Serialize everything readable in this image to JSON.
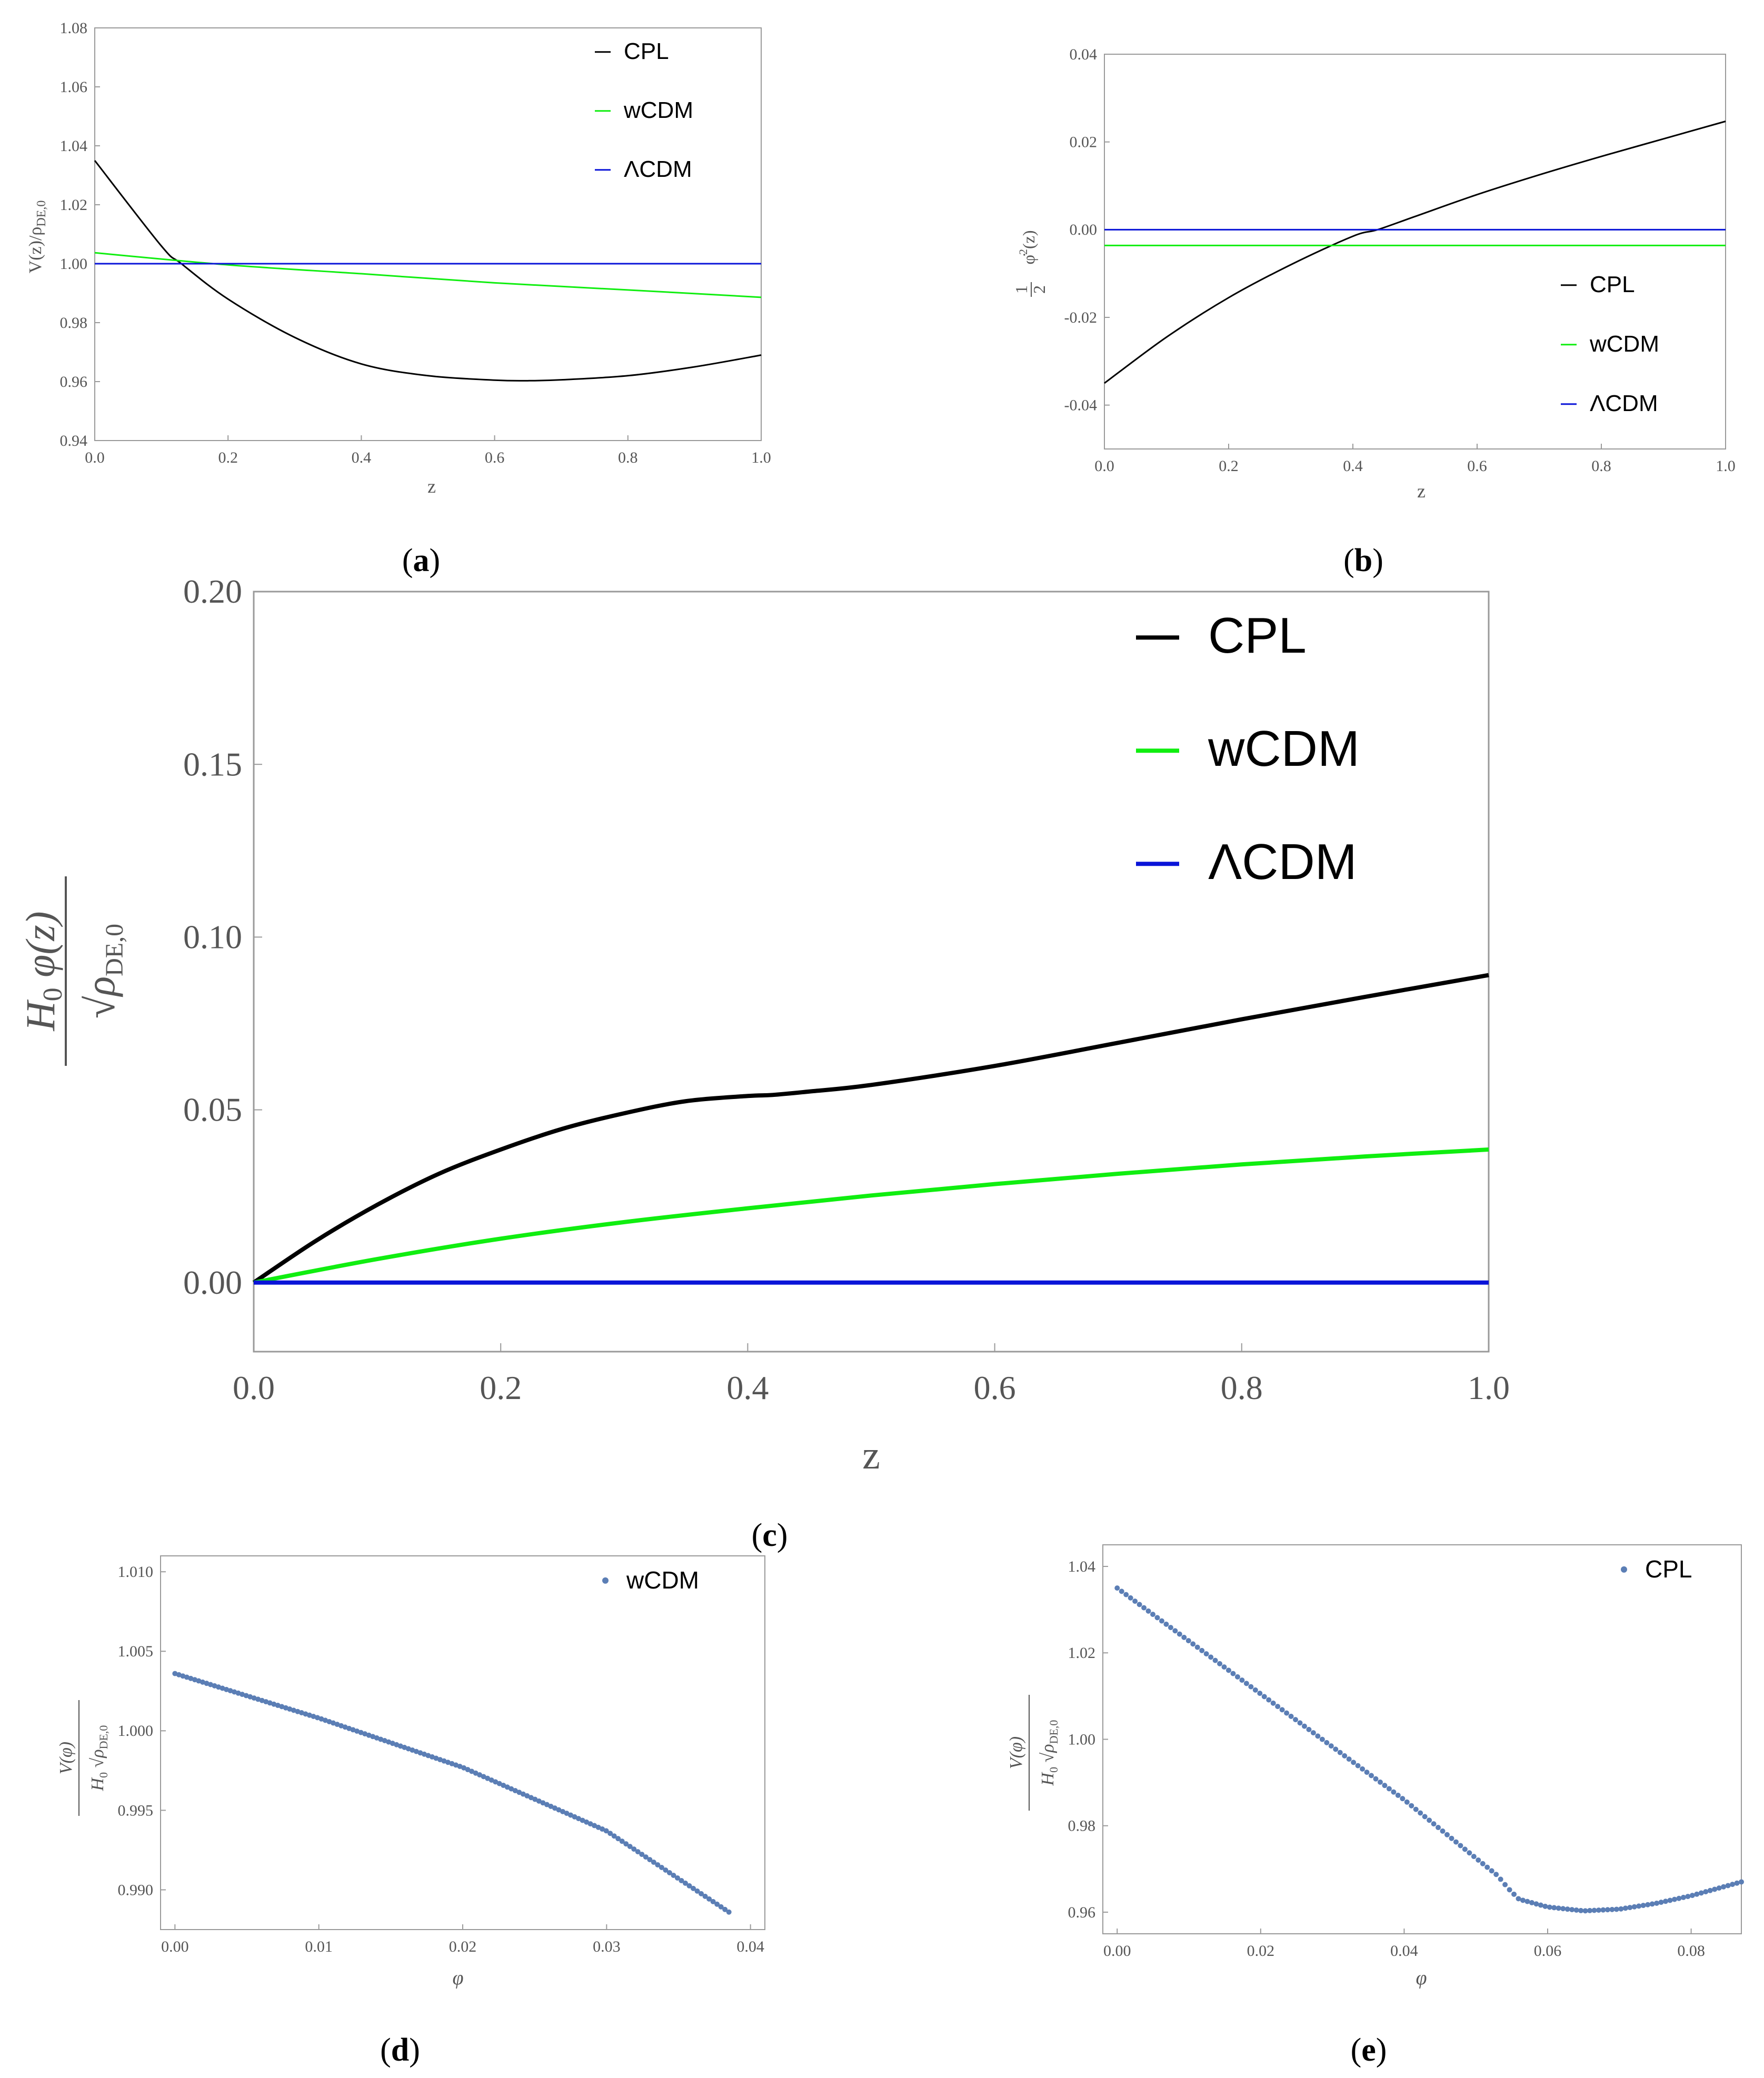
{
  "colors": {
    "cpl": "#000000",
    "wcdm": "#10ee10",
    "lcdm": "#0a14d8",
    "dots": "#5b7eb5"
  },
  "chart_data": [
    {
      "id": "a",
      "type": "line",
      "panel_label": "a",
      "xlabel": "z",
      "ylabel": "V(z)/ρ_DE,0",
      "xlim": [
        0,
        1
      ],
      "ylim": [
        0.94,
        1.08
      ],
      "xticks": [
        "0.0",
        "0.2",
        "0.4",
        "0.6",
        "0.8",
        "1.0"
      ],
      "yticks": [
        "0.94",
        "0.96",
        "0.98",
        "1.00",
        "1.02",
        "1.04",
        "1.06",
        "1.08"
      ],
      "legend": [
        "CPL",
        "wCDM",
        "ΛCDM"
      ],
      "series": [
        {
          "name": "CPL",
          "x": [
            0,
            0.1,
            0.13,
            0.2,
            0.3,
            0.4,
            0.5,
            0.6,
            0.65,
            0.7,
            0.8,
            0.9,
            1.0
          ],
          "y": [
            1.035,
            1.006,
            1.0,
            0.988,
            0.975,
            0.966,
            0.962,
            0.9605,
            0.9603,
            0.9606,
            0.962,
            0.965,
            0.969
          ]
        },
        {
          "name": "wCDM",
          "x": [
            0,
            0.2,
            0.4,
            0.6,
            0.8,
            1.0
          ],
          "y": [
            1.0037,
            0.9996,
            0.9966,
            0.9935,
            0.9911,
            0.9886
          ]
        },
        {
          "name": "ΛCDM",
          "x": [
            0,
            1
          ],
          "y": [
            1.0,
            1.0
          ]
        }
      ]
    },
    {
      "id": "b",
      "type": "line",
      "panel_label": "b",
      "xlabel": "z",
      "ylabel": "½ φ̇²(z)",
      "xlim": [
        0,
        1
      ],
      "ylim": [
        -0.05,
        0.04
      ],
      "xticks": [
        "0.0",
        "0.2",
        "0.4",
        "0.6",
        "0.8",
        "1.0"
      ],
      "yticks": [
        "-0.04",
        "-0.02",
        "0.00",
        "0.02",
        "0.04"
      ],
      "legend": [
        "CPL",
        "wCDM",
        "ΛCDM"
      ],
      "series": [
        {
          "name": "CPL",
          "x": [
            0,
            0.1,
            0.2,
            0.3,
            0.4,
            0.44,
            0.5,
            0.6,
            0.7,
            0.8,
            0.9,
            1.0
          ],
          "y": [
            -0.035,
            -0.0245,
            -0.0155,
            -0.008,
            -0.0015,
            0.0,
            0.003,
            0.008,
            0.0125,
            0.0167,
            0.0207,
            0.0247
          ]
        },
        {
          "name": "wCDM",
          "x": [
            0,
            1
          ],
          "y": [
            -0.0036,
            -0.0036
          ]
        },
        {
          "name": "ΛCDM",
          "x": [
            0,
            1
          ],
          "y": [
            0.0,
            0.0
          ]
        }
      ]
    },
    {
      "id": "c",
      "type": "line",
      "panel_label": "c",
      "xlabel": "z",
      "ylabel": "H₀ φ(z) / √ρ_DE,0",
      "xlim": [
        0,
        1
      ],
      "ylim": [
        -0.02,
        0.2
      ],
      "xticks": [
        "0.0",
        "0.2",
        "0.4",
        "0.6",
        "0.8",
        "1.0"
      ],
      "yticks": [
        "0.00",
        "0.05",
        "0.10",
        "0.15",
        "0.20"
      ],
      "legend": [
        "CPL",
        "wCDM",
        "ΛCDM"
      ],
      "series": [
        {
          "name": "CPL",
          "x": [
            0,
            0.05,
            0.1,
            0.15,
            0.2,
            0.25,
            0.3,
            0.35,
            0.4,
            0.42,
            0.45,
            0.5,
            0.6,
            0.7,
            0.8,
            0.9,
            1.0
          ],
          "y": [
            0,
            0.012,
            0.0225,
            0.0315,
            0.0385,
            0.0445,
            0.049,
            0.0525,
            0.054,
            0.0543,
            0.0553,
            0.0572,
            0.0627,
            0.0694,
            0.0762,
            0.0827,
            0.089
          ]
        },
        {
          "name": "wCDM",
          "x": [
            0,
            0.1,
            0.2,
            0.3,
            0.4,
            0.5,
            0.6,
            0.7,
            0.8,
            0.9,
            1.0
          ],
          "y": [
            0,
            0.0068,
            0.0127,
            0.0175,
            0.0215,
            0.0252,
            0.0285,
            0.0315,
            0.0342,
            0.0365,
            0.0385
          ]
        },
        {
          "name": "ΛCDM",
          "x": [
            0,
            1
          ],
          "y": [
            0,
            0
          ]
        }
      ]
    },
    {
      "id": "d",
      "type": "scatter",
      "panel_label": "d",
      "xlabel": "φ",
      "ylabel": "V(φ) / (H₀ √ρ_DE,0)",
      "xlim": [
        -0.001,
        0.041
      ],
      "ylim": [
        0.9875,
        1.011
      ],
      "xticks": [
        "0.00",
        "0.01",
        "0.02",
        "0.03",
        "0.04"
      ],
      "yticks": [
        "0.990",
        "0.995",
        "1.000",
        "1.005",
        "1.010"
      ],
      "legend": [
        "wCDM"
      ],
      "series": [
        {
          "name": "wCDM",
          "x": [
            0,
            0.01,
            0.02,
            0.03,
            0.0385
          ],
          "y": [
            1.0036,
            1.0008,
            0.9977,
            0.9937,
            0.9886
          ]
        }
      ]
    },
    {
      "id": "e",
      "type": "scatter",
      "panel_label": "e",
      "xlabel": "φ",
      "ylabel": "V(φ) / (H₀ √ρ_DE,0)",
      "xlim": [
        -0.002,
        0.087
      ],
      "ylim": [
        0.955,
        1.045
      ],
      "xticks": [
        "0.00",
        "0.02",
        "0.04",
        "0.06",
        "0.08"
      ],
      "yticks": [
        "0.96",
        "0.98",
        "1.00",
        "1.02",
        "1.04"
      ],
      "legend": [
        "CPL"
      ],
      "series": [
        {
          "name": "CPL",
          "x": [
            0,
            0.02,
            0.04,
            0.05,
            0.053,
            0.0545,
            0.056,
            0.06,
            0.065,
            0.07,
            0.075,
            0.08,
            0.087
          ],
          "y": [
            1.035,
            1.0105,
            0.986,
            0.9725,
            0.9685,
            0.9655,
            0.963,
            0.9612,
            0.9603,
            0.9607,
            0.962,
            0.9638,
            0.967
          ]
        }
      ]
    }
  ]
}
